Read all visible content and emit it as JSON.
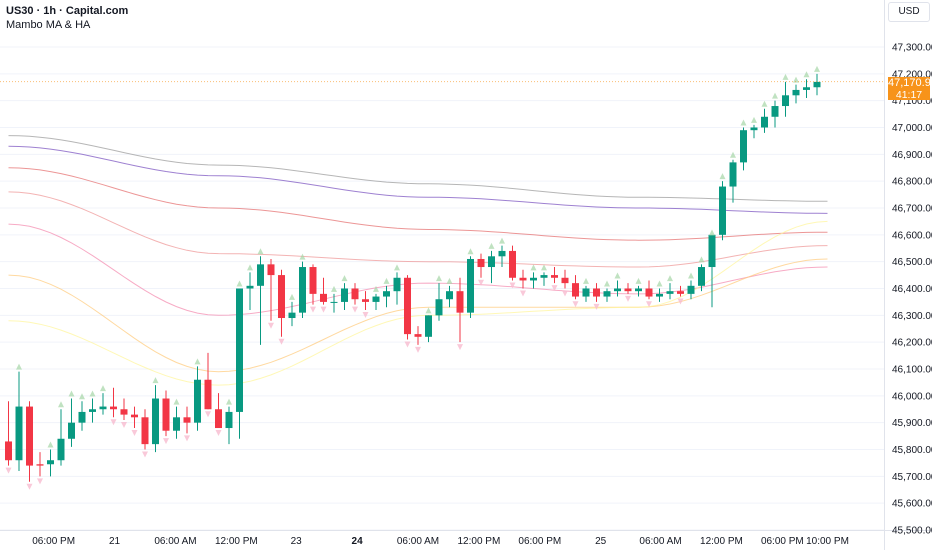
{
  "header": {
    "title": "US30 · 1h · Capital.com",
    "indicator": "Mambo MA & HA"
  },
  "currency_button": "USD",
  "last_price_label": "47,170.90",
  "countdown_label": "41:17",
  "colors": {
    "up": "#089981",
    "down": "#f23645",
    "last_price": "#f7931a",
    "grid": "#f0f3fa"
  },
  "chart_data": {
    "type": "candlestick",
    "symbol": "US30",
    "interval": "1h",
    "ylim": [
      45500,
      47500
    ],
    "y_ticks": [
      {
        "value": 47300,
        "label": "47,300.00"
      },
      {
        "value": 47200,
        "label": "47,200.00"
      },
      {
        "value": 47100,
        "label": "47,100.00"
      },
      {
        "value": 47000,
        "label": "47,000.00"
      },
      {
        "value": 46900,
        "label": "46,900.00"
      },
      {
        "value": 46800,
        "label": "46,800.00"
      },
      {
        "value": 46700,
        "label": "46,700.00"
      },
      {
        "value": 46600,
        "label": "46,600.00"
      },
      {
        "value": 46500,
        "label": "46,500.00"
      },
      {
        "value": 46400,
        "label": "46,400.00"
      },
      {
        "value": 46300,
        "label": "46,300.00"
      },
      {
        "value": 46200,
        "label": "46,200.00"
      },
      {
        "value": 46100,
        "label": "46,100.00"
      },
      {
        "value": 46000,
        "label": "46,000.00"
      },
      {
        "value": 45900,
        "label": "45,900.00"
      },
      {
        "value": 45800,
        "label": "45,800.00"
      },
      {
        "value": 45700,
        "label": "45,700.00"
      },
      {
        "value": 45600,
        "label": "45,600.00"
      },
      {
        "value": 45500,
        "label": "45,500.00"
      }
    ],
    "x_ticks": [
      {
        "index": 4.3,
        "label": "06:00 PM",
        "bold": false
      },
      {
        "index": 10.1,
        "label": "21",
        "bold": false
      },
      {
        "index": 15.9,
        "label": "06:00 AM",
        "bold": false
      },
      {
        "index": 21.7,
        "label": "12:00 PM",
        "bold": false
      },
      {
        "index": 27.4,
        "label": "23",
        "bold": false
      },
      {
        "index": 33.2,
        "label": "24",
        "bold": true
      },
      {
        "index": 39.0,
        "label": "06:00 AM",
        "bold": false
      },
      {
        "index": 44.8,
        "label": "12:00 PM",
        "bold": false
      },
      {
        "index": 50.6,
        "label": "06:00 PM",
        "bold": false
      },
      {
        "index": 56.4,
        "label": "25",
        "bold": false
      },
      {
        "index": 62.1,
        "label": "06:00 AM",
        "bold": false
      },
      {
        "index": 67.9,
        "label": "12:00 PM",
        "bold": false
      },
      {
        "index": 73.7,
        "label": "06:00 PM",
        "bold": false
      },
      {
        "index": 78.0,
        "label": "10:00 PM",
        "bold": false
      }
    ],
    "last_price": 47170.9,
    "candles": [
      {
        "o": 45830,
        "h": 45980,
        "l": 45740,
        "c": 45760
      },
      {
        "o": 45760,
        "h": 46090,
        "l": 45720,
        "c": 45960
      },
      {
        "o": 45960,
        "h": 45980,
        "l": 45680,
        "c": 45740
      },
      {
        "o": 45745,
        "h": 45790,
        "l": 45700,
        "c": 45740
      },
      {
        "o": 45745,
        "h": 45800,
        "l": 45700,
        "c": 45760
      },
      {
        "o": 45760,
        "h": 45950,
        "l": 45740,
        "c": 45840
      },
      {
        "o": 45840,
        "h": 45990,
        "l": 45810,
        "c": 45900
      },
      {
        "o": 45900,
        "h": 45980,
        "l": 45870,
        "c": 45940
      },
      {
        "o": 45940,
        "h": 45990,
        "l": 45900,
        "c": 45950
      },
      {
        "o": 45950,
        "h": 46010,
        "l": 45930,
        "c": 45960
      },
      {
        "o": 45960,
        "h": 46030,
        "l": 45920,
        "c": 45950
      },
      {
        "o": 45950,
        "h": 45990,
        "l": 45910,
        "c": 45930
      },
      {
        "o": 45930,
        "h": 45960,
        "l": 45880,
        "c": 45920
      },
      {
        "o": 45920,
        "h": 45950,
        "l": 45800,
        "c": 45820
      },
      {
        "o": 45820,
        "h": 46040,
        "l": 45790,
        "c": 45990
      },
      {
        "o": 45990,
        "h": 46020,
        "l": 45850,
        "c": 45870
      },
      {
        "o": 45870,
        "h": 45960,
        "l": 45840,
        "c": 45920
      },
      {
        "o": 45920,
        "h": 45960,
        "l": 45860,
        "c": 45900
      },
      {
        "o": 45900,
        "h": 46110,
        "l": 45870,
        "c": 46060
      },
      {
        "o": 46060,
        "h": 46160,
        "l": 45950,
        "c": 45950
      },
      {
        "o": 45950,
        "h": 46010,
        "l": 45880,
        "c": 45880
      },
      {
        "o": 45880,
        "h": 45960,
        "l": 45820,
        "c": 45940
      },
      {
        "o": 45940,
        "h": 46400,
        "l": 45840,
        "c": 46400
      },
      {
        "o": 46400,
        "h": 46460,
        "l": 46320,
        "c": 46410
      },
      {
        "o": 46410,
        "h": 46520,
        "l": 46190,
        "c": 46490
      },
      {
        "o": 46490,
        "h": 46510,
        "l": 46280,
        "c": 46450
      },
      {
        "o": 46450,
        "h": 46470,
        "l": 46220,
        "c": 46290
      },
      {
        "o": 46290,
        "h": 46350,
        "l": 46260,
        "c": 46310
      },
      {
        "o": 46310,
        "h": 46500,
        "l": 46290,
        "c": 46480
      },
      {
        "o": 46480,
        "h": 46490,
        "l": 46340,
        "c": 46380
      },
      {
        "o": 46380,
        "h": 46440,
        "l": 46340,
        "c": 46350
      },
      {
        "o": 46350,
        "h": 46380,
        "l": 46310,
        "c": 46350
      },
      {
        "o": 46350,
        "h": 46420,
        "l": 46320,
        "c": 46400
      },
      {
        "o": 46400,
        "h": 46420,
        "l": 46340,
        "c": 46360
      },
      {
        "o": 46360,
        "h": 46390,
        "l": 46320,
        "c": 46350
      },
      {
        "o": 46350,
        "h": 46380,
        "l": 46320,
        "c": 46370
      },
      {
        "o": 46370,
        "h": 46410,
        "l": 46330,
        "c": 46390
      },
      {
        "o": 46390,
        "h": 46460,
        "l": 46340,
        "c": 46440
      },
      {
        "o": 46440,
        "h": 46450,
        "l": 46210,
        "c": 46230
      },
      {
        "o": 46230,
        "h": 46260,
        "l": 46190,
        "c": 46220
      },
      {
        "o": 46220,
        "h": 46300,
        "l": 46200,
        "c": 46300
      },
      {
        "o": 46300,
        "h": 46420,
        "l": 46280,
        "c": 46360
      },
      {
        "o": 46360,
        "h": 46410,
        "l": 46330,
        "c": 46390
      },
      {
        "o": 46390,
        "h": 46440,
        "l": 46200,
        "c": 46310
      },
      {
        "o": 46310,
        "h": 46520,
        "l": 46290,
        "c": 46510
      },
      {
        "o": 46510,
        "h": 46530,
        "l": 46440,
        "c": 46480
      },
      {
        "o": 46480,
        "h": 46540,
        "l": 46420,
        "c": 46520
      },
      {
        "o": 46520,
        "h": 46560,
        "l": 46480,
        "c": 46540
      },
      {
        "o": 46540,
        "h": 46560,
        "l": 46430,
        "c": 46440
      },
      {
        "o": 46440,
        "h": 46470,
        "l": 46400,
        "c": 46430
      },
      {
        "o": 46430,
        "h": 46460,
        "l": 46400,
        "c": 46440
      },
      {
        "o": 46440,
        "h": 46460,
        "l": 46410,
        "c": 46450
      },
      {
        "o": 46450,
        "h": 46480,
        "l": 46420,
        "c": 46440
      },
      {
        "o": 46440,
        "h": 46470,
        "l": 46400,
        "c": 46420
      },
      {
        "o": 46420,
        "h": 46450,
        "l": 46360,
        "c": 46370
      },
      {
        "o": 46370,
        "h": 46410,
        "l": 46350,
        "c": 46400
      },
      {
        "o": 46400,
        "h": 46420,
        "l": 46350,
        "c": 46370
      },
      {
        "o": 46370,
        "h": 46400,
        "l": 46350,
        "c": 46390
      },
      {
        "o": 46390,
        "h": 46430,
        "l": 46370,
        "c": 46400
      },
      {
        "o": 46400,
        "h": 46420,
        "l": 46380,
        "c": 46390
      },
      {
        "o": 46390,
        "h": 46410,
        "l": 46370,
        "c": 46400
      },
      {
        "o": 46400,
        "h": 46430,
        "l": 46360,
        "c": 46370
      },
      {
        "o": 46370,
        "h": 46400,
        "l": 46350,
        "c": 46380
      },
      {
        "o": 46380,
        "h": 46420,
        "l": 46360,
        "c": 46390
      },
      {
        "o": 46390,
        "h": 46410,
        "l": 46370,
        "c": 46380
      },
      {
        "o": 46380,
        "h": 46430,
        "l": 46360,
        "c": 46410
      },
      {
        "o": 46410,
        "h": 46490,
        "l": 46390,
        "c": 46480
      },
      {
        "o": 46480,
        "h": 46590,
        "l": 46330,
        "c": 46600
      },
      {
        "o": 46600,
        "h": 46800,
        "l": 46580,
        "c": 46780
      },
      {
        "o": 46780,
        "h": 46880,
        "l": 46720,
        "c": 46870
      },
      {
        "o": 46870,
        "h": 47000,
        "l": 46840,
        "c": 46990
      },
      {
        "o": 46990,
        "h": 47010,
        "l": 46960,
        "c": 47000
      },
      {
        "o": 47000,
        "h": 47070,
        "l": 46980,
        "c": 47040
      },
      {
        "o": 47040,
        "h": 47100,
        "l": 47000,
        "c": 47080
      },
      {
        "o": 47080,
        "h": 47170,
        "l": 47040,
        "c": 47120
      },
      {
        "o": 47120,
        "h": 47160,
        "l": 47090,
        "c": 47140
      },
      {
        "o": 47140,
        "h": 47180,
        "l": 47110,
        "c": 47150
      },
      {
        "o": 47150,
        "h": 47200,
        "l": 47120,
        "c": 47170
      }
    ],
    "moving_averages": [
      {
        "color": "#9e9e9e",
        "values": [
          46970,
          46860,
          46790,
          46740,
          46725
        ]
      },
      {
        "color": "#7e57c2",
        "values": [
          46930,
          46820,
          46740,
          46700,
          46680
        ]
      },
      {
        "color": "#e57373",
        "values": [
          46850,
          46700,
          46620,
          46580,
          46610
        ]
      },
      {
        "color": "#ef9a9a",
        "values": [
          46760,
          46530,
          46500,
          46480,
          46560
        ]
      },
      {
        "color": "#f48fb1",
        "values": [
          46640,
          46300,
          46420,
          46380,
          46480
        ]
      },
      {
        "color": "#ffcc80",
        "values": [
          46450,
          46090,
          46330,
          46330,
          46510
        ]
      },
      {
        "color": "#fff59d",
        "values": [
          46280,
          46040,
          46300,
          46330,
          46650
        ]
      }
    ],
    "ma_x": [
      0,
      20,
      40,
      60,
      78
    ]
  }
}
